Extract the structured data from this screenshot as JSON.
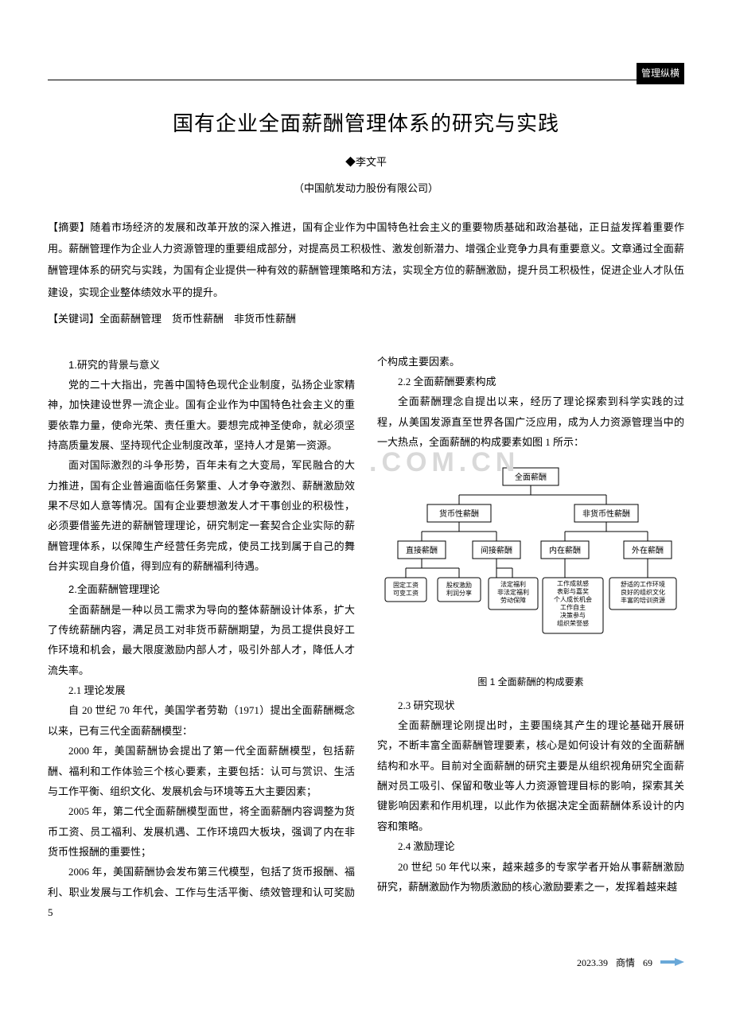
{
  "corner_tag": "管理纵横",
  "title": "国有企业全面薪酬管理体系的研究与实践",
  "author_prefix": "◆",
  "author": "李文平",
  "affiliation": "（中国航发动力股份有限公司）",
  "abstract_label": "【摘要】",
  "abstract_text": "随着市场经济的发展和改革开放的深入推进，国有企业作为中国特色社会主义的重要物质基础和政治基础，正日益发挥着重要作用。薪酬管理作为企业人力资源管理的重要组成部分，对提高员工积极性、激发创新潜力、增强企业竞争力具有重要意义。文章通过全面薪酬管理体系的研究与实践，为国有企业提供一种有效的薪酬管理策略和方法，实现全方位的薪酬激励，提升员工积极性，促进企业人才队伍建设，实现企业整体绩效水平的提升。",
  "keywords_label": "【关键词】",
  "keywords_text": "全面薪酬管理　货币性薪酬　非货币性薪酬",
  "left_column": {
    "h1": "1.研究的背景与意义",
    "p1": "党的二十大指出，完善中国特色现代企业制度，弘扬企业家精神，加快建设世界一流企业。国有企业作为中国特色社会主义的重要依靠力量，使命光荣、责任重大。要想完成神圣使命，就必须坚持高质量发展、坚持现代企业制度改革，坚持人才是第一资源。",
    "p2": "面对国际激烈的斗争形势，百年未有之大变局，军民融合的大力推进，国有企业普遍面临任务繁重、人才争夺激烈、薪酬激励效果不尽如人意等情况。国有企业要想激发人才干事创业的积极性，必须要借鉴先进的薪酬管理理论，研究制定一套契合企业实际的薪酬管理体系，以保障生产经营任务完成，使员工找到属于自己的舞台并实现自身价值，得到应有的薪酬福利待遇。",
    "h2": "2.全面薪酬管理理论",
    "p3": "全面薪酬是一种以员工需求为导向的整体薪酬设计体系，扩大了传统薪酬内容，满足员工对非货币薪酬期望，为员工提供良好工作环境和机会，最大限度激励内部人才，吸引外部人才，降低人才流失率。",
    "s21": "2.1 理论发展",
    "p4": "自 20 世纪 70 年代，美国学者劳勒（1971）提出全面薪酬概念以来，已有三代全面薪酬模型：",
    "p5": "2000 年，美国薪酬协会提出了第一代全面薪酬模型，包括薪酬、福利和工作体验三个核心要素，主要包括：认可与赏识、生活与工作平衡、组织文化、发展机会与环境等五大主要因素；",
    "p6": "2005 年，第二代全面薪酬模型面世，将全面薪酬内容调整为货币工资、员工福利、发展机遇、工作环境四大板块，强调了内在非货币性报酬的重要性；",
    "p7": "2006 年，美国薪酬协会发布第三代模型，包括了货币报酬、福利、职业发展与工作机会、工作与生活平衡、绩效管理和认可奖励 5"
  },
  "right_column": {
    "p_cont": "个构成主要因素。",
    "s22": "2.2 全面薪酬要素构成",
    "p8": "全面薪酬理念自提出以来，经历了理论探索到科学实践的过程，从美国发源直至世界各国广泛应用，成为人力资源管理当中的一大热点，全面薪酬的构成要素如图 1 所示：",
    "fig_caption": "图 1 全面薪酬的构成要素",
    "s23": "2.3 研究现状",
    "p9": "全面薪酬理论刚提出时，主要围绕其产生的理论基础开展研究，不断丰富全面薪酬管理要素，核心是如何设计有效的全面薪酬结构和水平。目前对全面薪酬的研究主要是从组织视角研究全面薪酬对员工吸引、保留和敬业等人力资源管理目标的影响，探索其关键影响因素和作用机理，以此作为依据决定全面薪酬体系设计的内容和策略。",
    "s24": "2.4 激励理论",
    "p10": "20 世纪 50 年代以来，越来越多的专家学者开始从事薪酬激励研究，薪酬激励作为物质激励的核心激励要素之一，发挥着越来越"
  },
  "watermark": ".COM.CN",
  "diagram": {
    "root": "全面薪酬",
    "level2": [
      "货币性薪酬",
      "非货币性薪酬"
    ],
    "level3": [
      "直接薪酬",
      "间接薪酬",
      "内在薪酬",
      "外在薪酬"
    ],
    "leaves": [
      "固定工资\n可变工资",
      "股权激励\n利润分享",
      "法定福利\n非法定福利\n劳动保障",
      "工作成就感\n表彰与嘉奖\n个人成长机会\n工作自主\n决策参与\n组织荣誉感",
      "舒适的工作环境\n良好的组织文化\n丰富的培训资源"
    ],
    "box_stroke": "#000000",
    "line_stroke": "#000000",
    "bg": "#ffffff",
    "fontsize_node": 10,
    "fontsize_leaf": 8
  },
  "footer": {
    "issue": "2023.39",
    "journal": "商情",
    "page": "69"
  }
}
